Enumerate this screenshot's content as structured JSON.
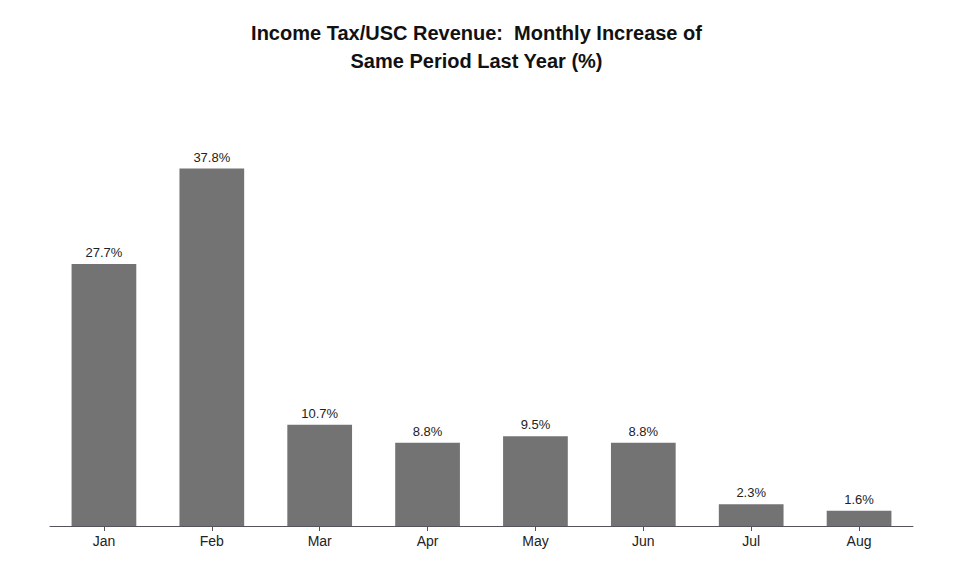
{
  "chart_data": {
    "type": "bar",
    "title": "Income Tax/USC Revenue:  Monthly Increase of\nSame Period Last Year (%)",
    "categories": [
      "Jan",
      "Feb",
      "Mar",
      "Apr",
      "May",
      "Jun",
      "Jul",
      "Aug"
    ],
    "values": [
      27.7,
      37.8,
      10.7,
      8.8,
      9.5,
      8.8,
      2.3,
      1.6
    ],
    "value_labels": [
      "27.7%",
      "37.8%",
      "10.7%",
      "8.8%",
      "9.5%",
      "8.8%",
      "2.3%",
      "1.6%"
    ],
    "color": "#737373",
    "ylim": [
      0,
      44
    ],
    "grid": false,
    "data_labels": true,
    "tick_labels": "x"
  }
}
